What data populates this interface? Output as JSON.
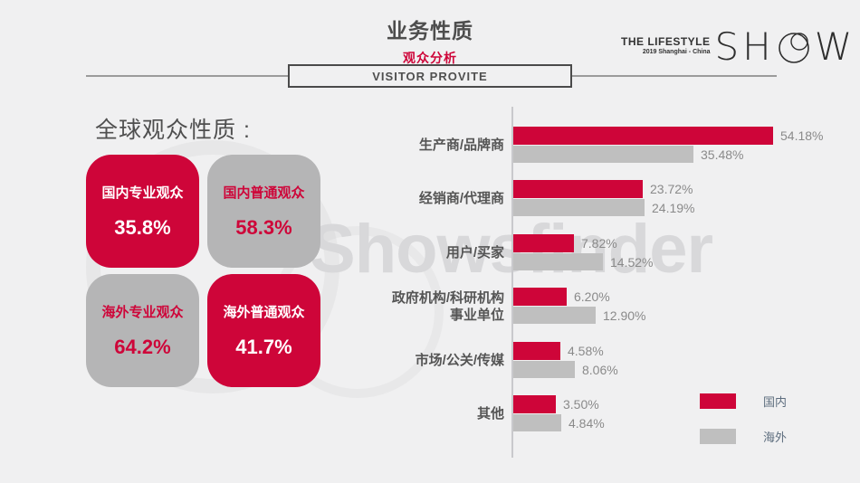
{
  "page": {
    "title": "业务性质",
    "subtitle": "观众分析",
    "banner": "VISITOR PROVITE",
    "watermark": "Showsfinder",
    "logo": {
      "line1": "THE LIFESTYLE",
      "line2": "2019 Shanghai - China",
      "word": "SHOW"
    }
  },
  "left_panel": {
    "heading": "全球观众性质 :",
    "cards": [
      {
        "label": "国内专业观众",
        "value": "35.8%",
        "variant": "red"
      },
      {
        "label": "国内普通观众",
        "value": "58.3%",
        "variant": "gray"
      },
      {
        "label": "海外专业观众",
        "value": "64.2%",
        "variant": "gray"
      },
      {
        "label": "海外普通观众",
        "value": "41.7%",
        "variant": "red"
      }
    ]
  },
  "chart_data": {
    "type": "bar",
    "orientation": "horizontal",
    "title": "",
    "categories": [
      "生产商/品牌商",
      "经销商/代理商",
      "用户/买家",
      "政府机构/科研机构\n事业单位",
      "市场/公关/传媒",
      "其他"
    ],
    "series": [
      {
        "name": "国内",
        "color": "#ce0539",
        "values": [
          54.18,
          23.72,
          7.82,
          6.2,
          4.58,
          3.5
        ],
        "labels": [
          "54.18%",
          "23.72%",
          "7.82%",
          "6.20%",
          "4.58%",
          "3.50%"
        ]
      },
      {
        "name": "海外",
        "color": "#bfbfbf",
        "values": [
          35.48,
          24.19,
          14.52,
          12.9,
          8.06,
          4.84
        ],
        "labels": [
          "35.48%",
          "24.19%",
          "14.52%",
          "12.90%",
          "8.06%",
          "4.84%"
        ]
      }
    ],
    "xlim": [
      0,
      60
    ],
    "grid": false,
    "legend_position": "bottom-right",
    "value_labels_shown": true
  },
  "colors": {
    "accent_red": "#ce0539",
    "bar_gray": "#bfbfbf",
    "card_gray": "#b5b5b6",
    "background": "#f0f0f1",
    "text_dark": "#4d4d4d",
    "value_text": "#8a8a8a",
    "legend_text": "#5d6d7e"
  }
}
